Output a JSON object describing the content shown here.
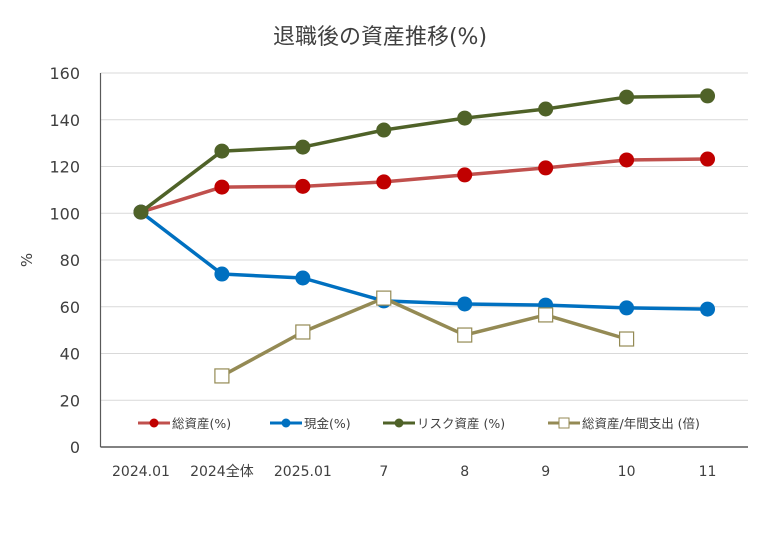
{
  "chart_data": {
    "type": "line",
    "title": "退職後の資産推移(%)",
    "xlabel": "",
    "ylabel": "%",
    "ylim": [
      0,
      160
    ],
    "yticks": [
      0,
      20,
      40,
      60,
      80,
      100,
      120,
      140,
      160
    ],
    "grid": true,
    "legend_position": "bottom-inside",
    "categories": [
      "2024.01",
      "2024全体",
      "2025.01",
      "7",
      "8",
      "9",
      "10",
      "11"
    ],
    "series": [
      {
        "name": "総資産(%)",
        "color": "#c00000",
        "line_color": "#c0504d",
        "marker": "circle",
        "values": [
          100.5,
          111.2,
          111.5,
          113.4,
          116.4,
          119.4,
          122.8,
          123.2
        ]
      },
      {
        "name": "現金(%)",
        "color": "#0070c0",
        "line_color": "#0070c0",
        "marker": "circle",
        "values": [
          100.5,
          74.0,
          72.3,
          62.5,
          61.2,
          60.7,
          59.5,
          59.0
        ]
      },
      {
        "name": "リスク資産 (%)",
        "color": "#4f6228",
        "line_color": "#4f6228",
        "marker": "circle",
        "values": [
          100.5,
          126.6,
          128.3,
          135.6,
          140.7,
          144.6,
          149.7,
          150.2
        ]
      },
      {
        "name": "総資産/年間支出 (倍)",
        "color": "#948a54",
        "line_color": "#948a54",
        "marker": "square",
        "values": [
          null,
          30.4,
          49.2,
          63.7,
          47.9,
          56.5,
          46.2,
          null
        ]
      }
    ]
  }
}
